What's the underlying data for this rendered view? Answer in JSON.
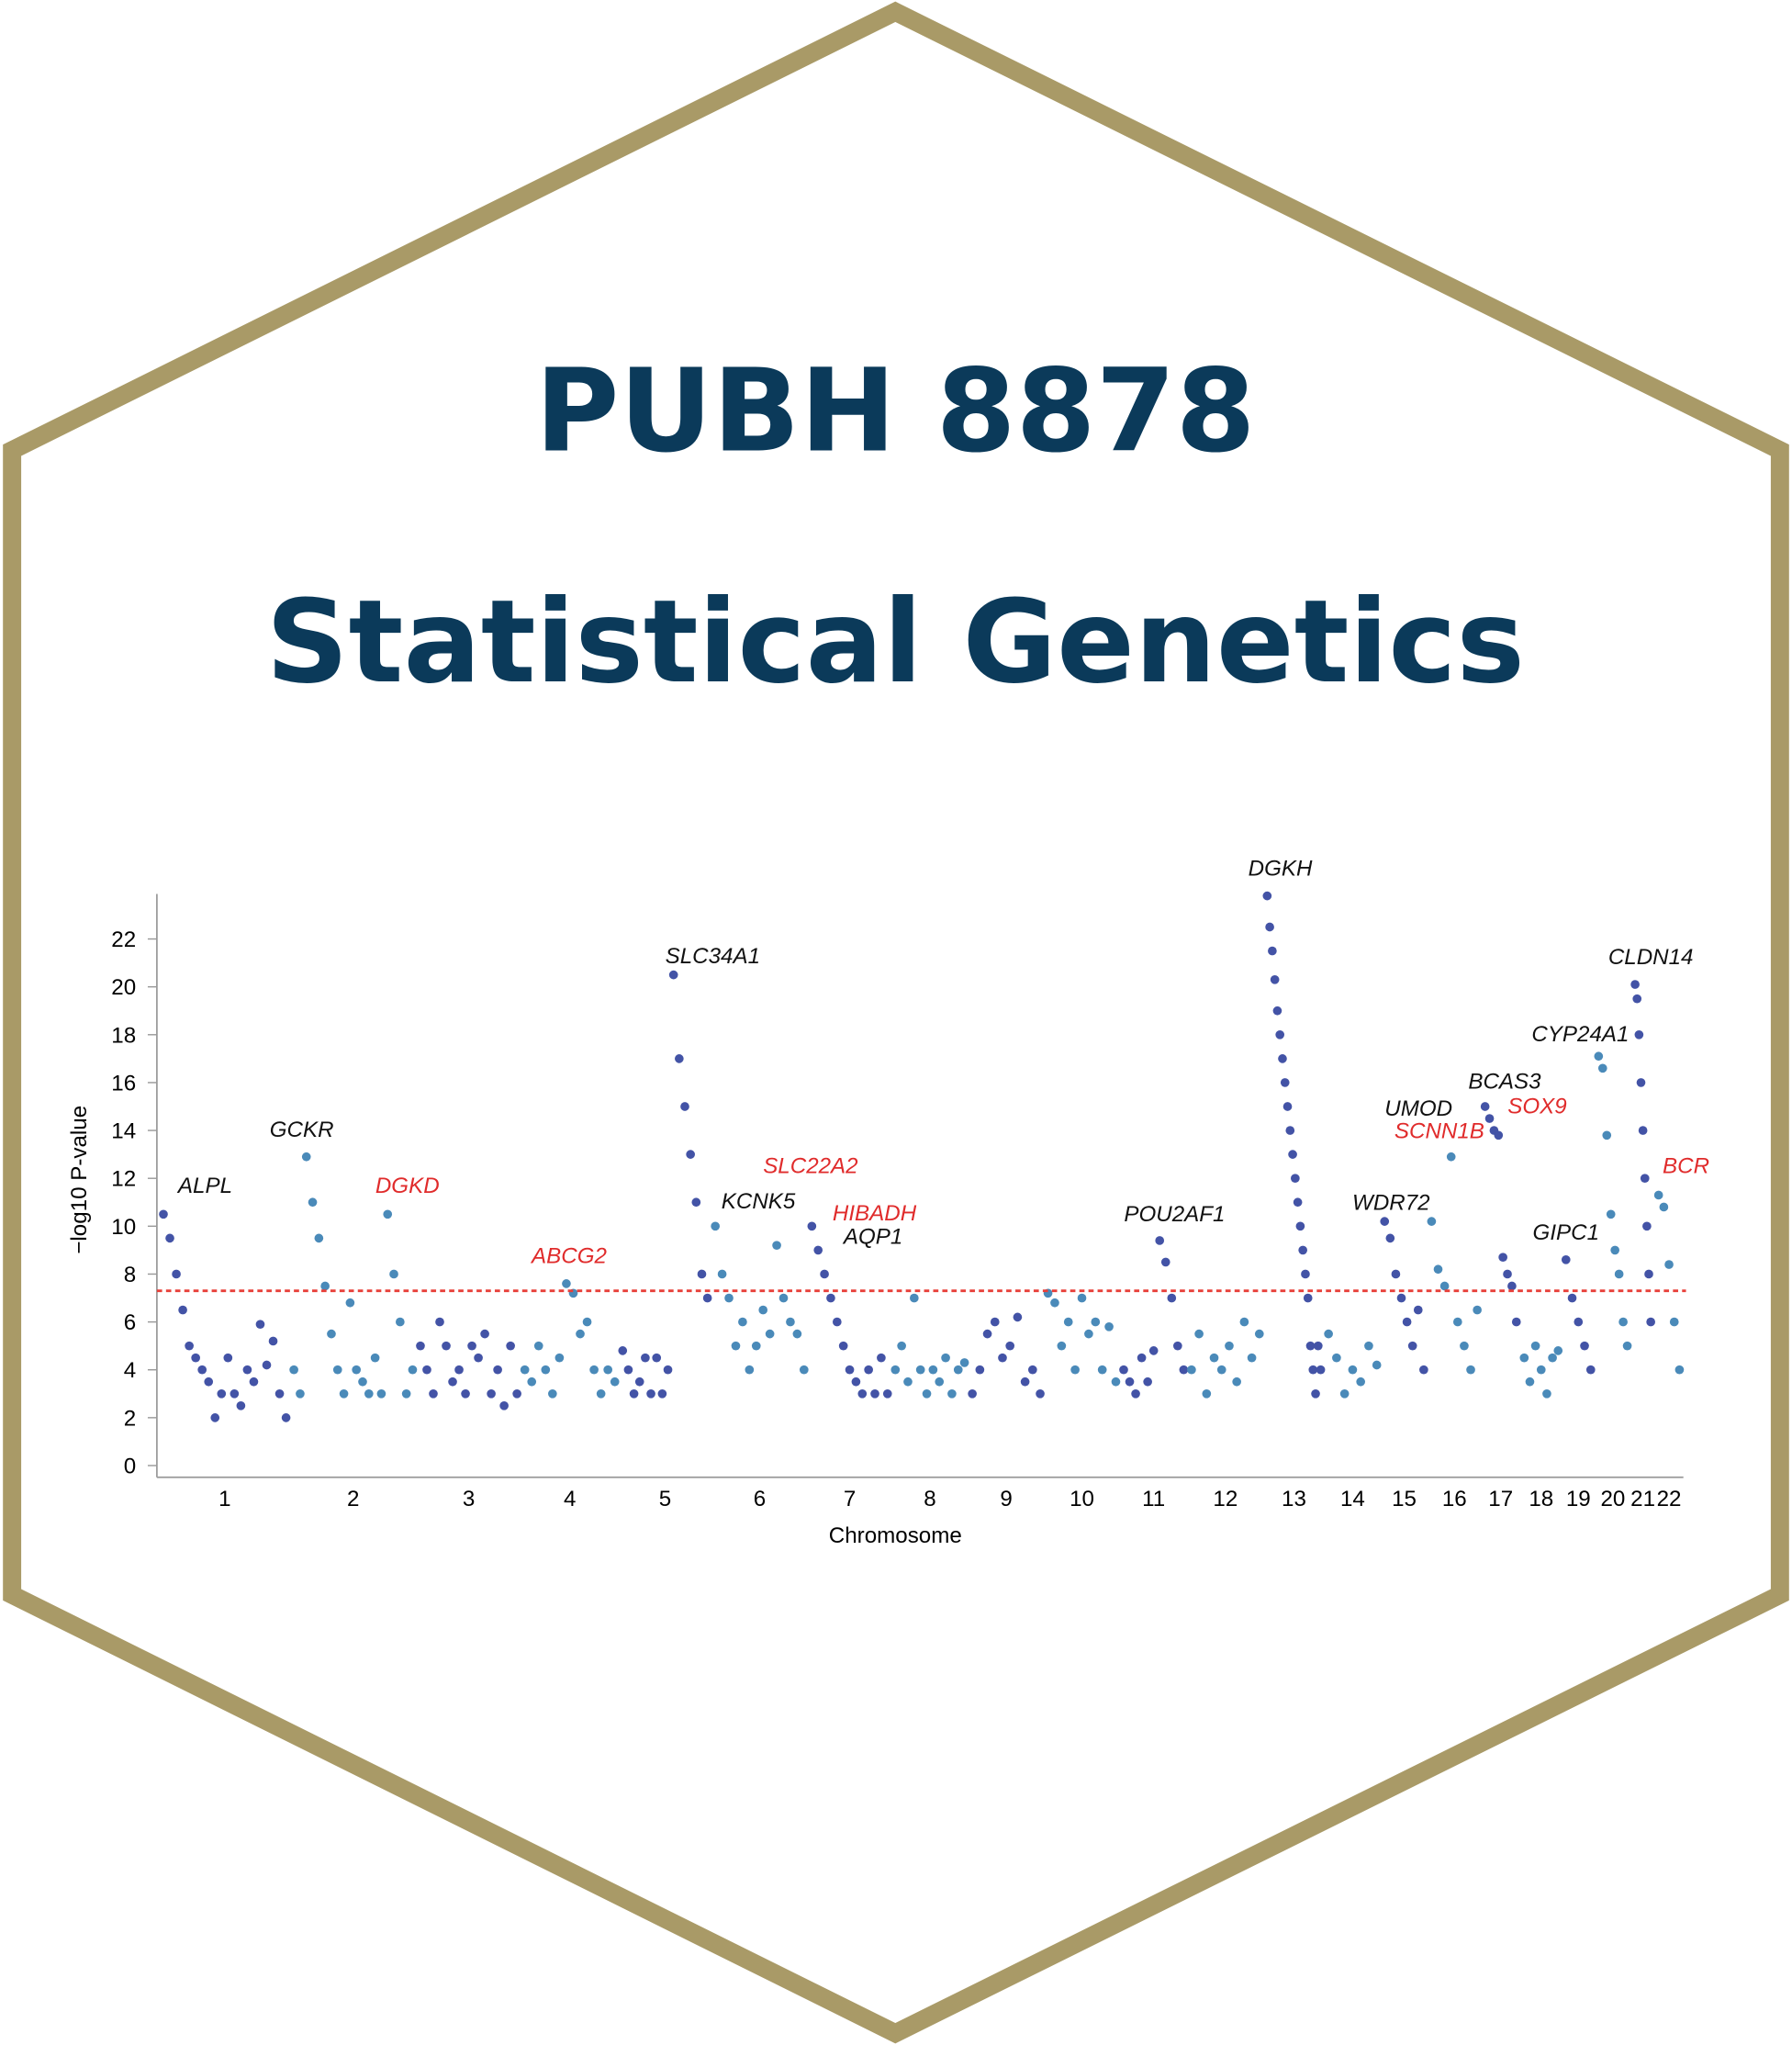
{
  "header": {
    "line1": "PUBH 8878",
    "line2": "Statistical Genetics"
  },
  "chart_data": {
    "type": "manhattan",
    "x_label": "Chromosome",
    "y_label": "−log10 P-value",
    "categories": [
      "1",
      "2",
      "3",
      "4",
      "5",
      "6",
      "7",
      "8",
      "9",
      "10",
      "11",
      "12",
      "13",
      "14",
      "15",
      "16",
      "17",
      "18",
      "19",
      "20",
      "21",
      "22"
    ],
    "colors": [
      "#4353a6",
      "#4a8ab9"
    ],
    "values": [
      [
        10.5,
        9.5,
        8,
        6.5,
        5,
        4.5,
        4,
        3.5,
        2,
        3,
        4.5,
        3,
        2.5,
        4,
        3.5,
        5.9,
        4.2,
        5.2,
        3,
        2
      ],
      [
        4,
        3,
        12.9,
        11,
        9.5,
        7.5,
        5.5,
        4,
        3,
        6.8,
        4,
        3.5,
        3,
        4.5,
        3,
        10.5,
        8,
        6,
        3,
        4
      ],
      [
        5,
        4,
        3,
        6,
        5,
        3.5,
        4,
        3,
        5,
        4.5,
        5.5,
        3,
        4,
        2.5,
        5,
        3
      ],
      [
        4,
        3.5,
        5,
        4,
        3,
        4.5,
        7.6,
        7.2,
        5.5,
        6,
        4,
        3,
        4,
        3.5
      ],
      [
        4.8,
        4,
        3,
        3.5,
        4.5,
        3,
        4.5,
        3,
        4,
        20.5,
        17,
        15,
        13,
        11,
        8,
        7
      ],
      [
        10,
        8,
        7,
        5,
        6,
        4,
        5,
        6.5,
        5.5,
        9.2,
        7,
        6,
        5.5,
        4
      ],
      [
        10,
        9,
        8,
        7,
        6,
        5,
        4,
        3.5,
        3,
        4,
        3,
        4.5,
        3
      ],
      [
        4,
        5,
        3.5,
        7,
        4,
        3,
        4,
        3.5,
        4.5,
        3,
        4,
        4.3
      ],
      [
        3,
        4,
        5.5,
        6,
        4.5,
        5,
        6.2,
        3.5,
        4,
        3
      ],
      [
        7.2,
        6.8,
        5,
        6,
        4,
        7,
        5.5,
        6,
        4,
        5.8,
        3.5
      ],
      [
        4,
        3.5,
        3,
        4.5,
        3.5,
        4.8,
        9.4,
        8.5,
        7,
        5,
        4
      ],
      [
        4,
        5.5,
        3,
        4.5,
        4,
        5,
        3.5,
        6,
        4.5,
        5.5
      ],
      [
        23.8,
        22.5,
        21.5,
        20.3,
        19,
        18,
        17,
        16,
        15,
        14,
        13,
        12,
        11,
        10,
        9,
        8,
        7,
        5,
        4,
        3,
        5,
        4
      ],
      [
        5.5,
        4.5,
        3,
        4,
        3.5,
        5,
        4.2
      ],
      [
        10.2,
        9.5,
        8,
        7,
        6,
        5,
        6.5,
        4
      ],
      [
        10.2,
        8.2,
        7.5,
        12.9,
        6,
        5,
        4,
        6.5
      ],
      [
        15,
        14.5,
        14,
        13.8,
        8.7,
        8,
        7.5,
        6
      ],
      [
        4.5,
        3.5,
        5,
        4,
        3,
        4.5,
        4.8
      ],
      [
        8.6,
        7,
        6,
        5,
        4
      ],
      [
        17.1,
        16.6,
        13.8,
        10.5,
        9,
        8,
        6,
        5
      ],
      [
        20.1,
        19.5,
        18,
        16,
        14,
        12,
        10,
        8,
        6
      ],
      [
        11.3,
        10.8,
        8.4,
        6,
        4
      ]
    ],
    "ylim": [
      0,
      24
    ],
    "yticks": [
      0,
      2,
      4,
      6,
      8,
      10,
      12,
      14,
      16,
      18,
      20,
      22
    ],
    "threshold": 7.3,
    "threshold_color": "#e8403a",
    "annotations": [
      {
        "text": "ALPL",
        "color": "#111111"
      },
      {
        "text": "GCKR",
        "color": "#111111"
      },
      {
        "text": "DGKD",
        "color": "#e02b2b"
      },
      {
        "text": "ABCG2",
        "color": "#e02b2b"
      },
      {
        "text": "SLC34A1",
        "color": "#111111"
      },
      {
        "text": "SLC22A2",
        "color": "#e02b2b"
      },
      {
        "text": "KCNK5",
        "color": "#111111"
      },
      {
        "text": "HIBADH",
        "color": "#e02b2b"
      },
      {
        "text": "AQP1",
        "color": "#111111"
      },
      {
        "text": "POU2AF1",
        "color": "#111111"
      },
      {
        "text": "DGKH",
        "color": "#111111"
      },
      {
        "text": "WDR72",
        "color": "#111111"
      },
      {
        "text": "UMOD",
        "color": "#111111"
      },
      {
        "text": "SCNN1B",
        "color": "#e02b2b"
      },
      {
        "text": "BCAS3",
        "color": "#111111"
      },
      {
        "text": "SOX9",
        "color": "#e02b2b"
      },
      {
        "text": "CYP24A1",
        "color": "#111111"
      },
      {
        "text": "GIPC1",
        "color": "#111111"
      },
      {
        "text": "CLDN14",
        "color": "#111111"
      },
      {
        "text": "BCR",
        "color": "#e02b2b"
      }
    ]
  }
}
